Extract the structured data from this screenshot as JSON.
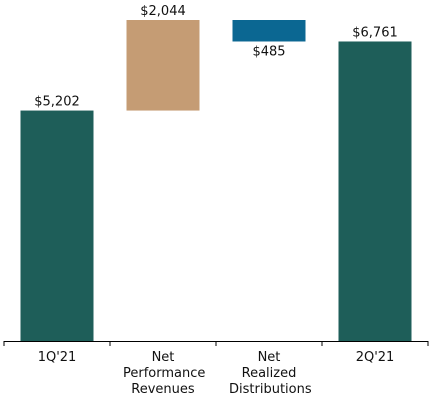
{
  "chart_data": {
    "type": "waterfall",
    "categories": [
      "1Q'21",
      "Net Performance Revenues",
      "Net Realized Distributions",
      "2Q'21"
    ],
    "measure": [
      "absolute",
      "relative",
      "relative",
      "total"
    ],
    "values": [
      5202,
      2044,
      -485,
      6761
    ],
    "value_labels": [
      "$5,202",
      "$2,044",
      "$485",
      "$6,761"
    ],
    "colors": [
      "#1e5e59",
      "#c59c74",
      "#0b6792",
      "#1e5e59"
    ]
  }
}
